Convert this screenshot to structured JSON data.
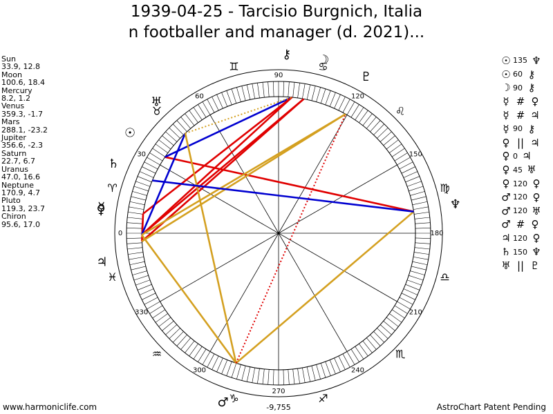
{
  "title_line1": "1939-04-25 - Tarcisio Burgnich, Italia",
  "title_line2": "n footballer and manager (d. 2021)...",
  "positions": [
    {
      "name": "Sun",
      "value": "33.9, 12.8",
      "glyph": "☉",
      "lon": 33.9
    },
    {
      "name": "Moon",
      "value": "100.6, 18.4",
      "glyph": "☽",
      "lon": 100.6
    },
    {
      "name": "Mercury",
      "value": "8.2, 1.2",
      "glyph": "☿",
      "lon": 8.2
    },
    {
      "name": "Venus",
      "value": "359.3, -1.7",
      "glyph": "♀",
      "lon": 359.3
    },
    {
      "name": "Mars",
      "value": "288.1, -23.2",
      "glyph": "♂",
      "lon": 288.1
    },
    {
      "name": "Jupiter",
      "value": "356.6, -2.3",
      "glyph": "♃",
      "lon": 356.6
    },
    {
      "name": "Saturn",
      "value": "22.7, 6.7",
      "glyph": "♄",
      "lon": 22.7
    },
    {
      "name": "Uranus",
      "value": "47.0, 16.6",
      "glyph": "♅",
      "lon": 47.0
    },
    {
      "name": "Neptune",
      "value": "170.9, 4.7",
      "glyph": "♆",
      "lon": 170.9
    },
    {
      "name": "Pluto",
      "value": "119.3, 23.7",
      "glyph": "♇",
      "lon": 119.3
    },
    {
      "name": "Chiron",
      "value": "95.6, 17.0",
      "glyph": "⚷",
      "lon": 95.6
    }
  ],
  "degree_labels": [
    {
      "text": "0",
      "deg": 0
    },
    {
      "text": "30",
      "deg": 30
    },
    {
      "text": "60",
      "deg": 60
    },
    {
      "text": "90",
      "deg": 90
    },
    {
      "text": "120",
      "deg": 120
    },
    {
      "text": "150",
      "deg": 150
    },
    {
      "text": "180",
      "deg": 180
    },
    {
      "text": "210",
      "deg": 210
    },
    {
      "text": "240",
      "deg": 240
    },
    {
      "text": "270",
      "deg": 270
    },
    {
      "text": "300",
      "deg": 300
    },
    {
      "text": "330",
      "deg": 330
    }
  ],
  "zodiac_signs": [
    {
      "glyph": "♈",
      "deg": 15
    },
    {
      "glyph": "♉",
      "deg": 45
    },
    {
      "glyph": "♊",
      "deg": 75
    },
    {
      "glyph": "♋",
      "deg": 105
    },
    {
      "glyph": "♌",
      "deg": 135
    },
    {
      "glyph": "♍",
      "deg": 165
    },
    {
      "glyph": "♎",
      "deg": 195
    },
    {
      "glyph": "♏",
      "deg": 225
    },
    {
      "glyph": "♐",
      "deg": 255
    },
    {
      "glyph": "♑",
      "deg": 285
    },
    {
      "glyph": "♒",
      "deg": 315
    },
    {
      "glyph": "♓",
      "deg": 345
    }
  ],
  "aspect_lines": [
    {
      "from": "Sun",
      "to": "Neptune",
      "color": "#e00000",
      "style": "solid"
    },
    {
      "from": "Sun",
      "to": "Chiron",
      "color": "#0000d0",
      "style": "solid"
    },
    {
      "from": "Moon",
      "to": "Venus",
      "color": "#e00000",
      "style": "solid"
    },
    {
      "from": "Moon",
      "to": "Jupiter",
      "color": "#e00000",
      "style": "solid"
    },
    {
      "from": "Mercury",
      "to": "Chiron",
      "color": "#e00000",
      "style": "solid"
    },
    {
      "from": "Mercury",
      "to": "Jupiter",
      "color": "#e00000",
      "style": "solid"
    },
    {
      "from": "Venus",
      "to": "Chiron",
      "color": "#e00000",
      "style": "solid"
    },
    {
      "from": "Venus",
      "to": "Uranus",
      "color": "#0000d0",
      "style": "solid"
    },
    {
      "from": "Venus",
      "to": "Pluto",
      "color": "#d4a020",
      "style": "solid"
    },
    {
      "from": "Mars",
      "to": "Venus",
      "color": "#d4a020",
      "style": "solid"
    },
    {
      "from": "Mars",
      "to": "Uranus",
      "color": "#d4a020",
      "style": "solid"
    },
    {
      "from": "Mars",
      "to": "Neptune",
      "color": "#d4a020",
      "style": "solid"
    },
    {
      "from": "Mars",
      "to": "Pluto",
      "color": "#e00000",
      "style": "dotted"
    },
    {
      "from": "Jupiter",
      "to": "Pluto",
      "color": "#d4a020",
      "style": "solid"
    },
    {
      "from": "Saturn",
      "to": "Neptune",
      "color": "#0000d0",
      "style": "solid"
    },
    {
      "from": "Uranus",
      "to": "Chiron",
      "color": "#d4a020",
      "style": "dotted"
    }
  ],
  "aspect_table": [
    {
      "p1": "☉",
      "num": "135",
      "p2": "♆"
    },
    {
      "p1": "☉",
      "num": "60",
      "p2": "⚷"
    },
    {
      "p1": "☽",
      "num": "90",
      "p2": "⚷"
    },
    {
      "p1": "☿",
      "num": "#",
      "p2": "♀"
    },
    {
      "p1": "☿",
      "num": "#",
      "p2": "♃"
    },
    {
      "p1": "☿",
      "num": "90",
      "p2": "⚷"
    },
    {
      "p1": "♀",
      "num": "||",
      "p2": "♃"
    },
    {
      "p1": "♀",
      "num": "0",
      "p2": "♃"
    },
    {
      "p1": "♀",
      "num": "45",
      "p2": "♅"
    },
    {
      "p1": "♀",
      "num": "120",
      "p2": "♀"
    },
    {
      "p1": "♂",
      "num": "120",
      "p2": "♀"
    },
    {
      "p1": "♂",
      "num": "120",
      "p2": "♅"
    },
    {
      "p1": "♂",
      "num": "#",
      "p2": "♀"
    },
    {
      "p1": "♃",
      "num": "120",
      "p2": "♀"
    },
    {
      "p1": "♄",
      "num": "150",
      "p2": "♆"
    },
    {
      "p1": "♅",
      "num": "||",
      "p2": "♇"
    }
  ],
  "bottom_value": "-9,755",
  "footer_left": "www.harmoniclife.com",
  "footer_right": "AstroChart Patent Pending",
  "colors": {
    "red": "#e00000",
    "blue": "#0000d0",
    "gold": "#d4a020"
  }
}
